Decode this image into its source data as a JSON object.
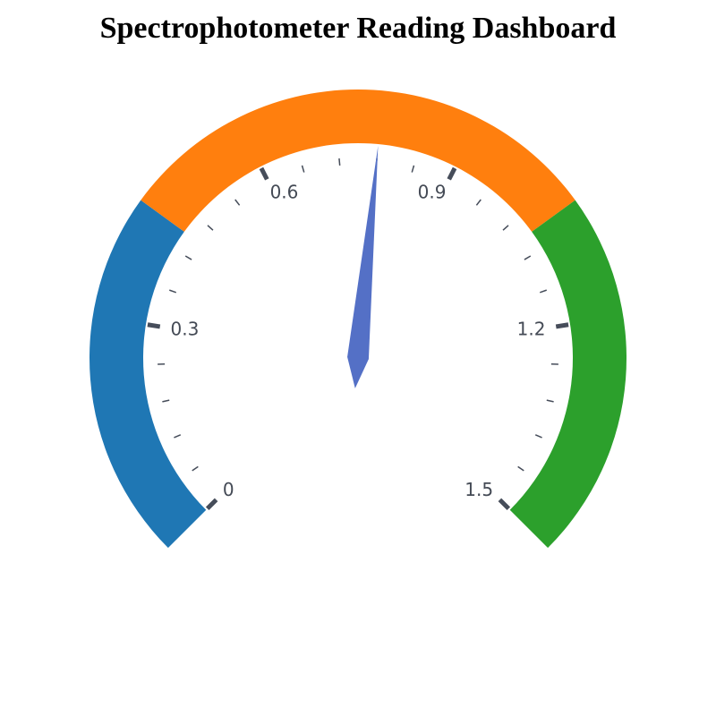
{
  "header": {
    "title": "Spectrophotometer Reading Dashboard"
  },
  "chart_data": {
    "type": "gauge",
    "title": "Spectrophotometer Reading Dashboard",
    "min": 0,
    "max": 1.5,
    "value": 0.78,
    "major_ticks": [
      0,
      0.3,
      0.6,
      0.9,
      1.2,
      1.5
    ],
    "tick_labels": [
      "0",
      "0.3",
      "0.6",
      "0.9",
      "1.2",
      "1.5"
    ],
    "minor_ticks_per_major": 5,
    "bands": [
      {
        "from": 0,
        "to": 0.45,
        "color": "#1f77b4"
      },
      {
        "from": 0.45,
        "to": 1.05,
        "color": "#ff7f0e"
      },
      {
        "from": 1.05,
        "to": 1.5,
        "color": "#2ca02c"
      }
    ],
    "pointer_color": "#5470c6",
    "tick_color": "#464d5a"
  }
}
